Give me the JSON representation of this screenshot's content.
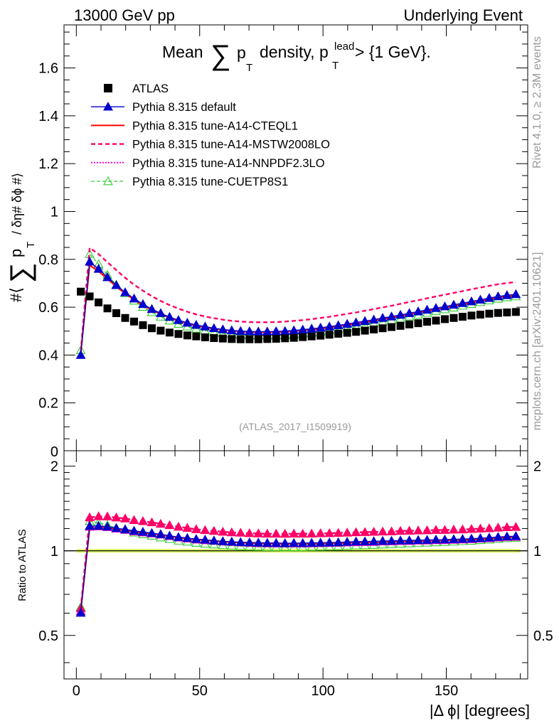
{
  "header": {
    "left": "13000 GeV pp",
    "right": "Underlying Event"
  },
  "side_labels": {
    "rivet": "Rivet 4.1.0, ≥ 2.3M events",
    "mcplots": "mcplots.cern.ch [arXiv:2401.10621]"
  },
  "colors": {
    "atlas": "#000000",
    "default": "#0000cc",
    "cteql1": "#ff0000",
    "mstw": "#ff0066",
    "nnpdf": "#ff00cc",
    "cuetp": "#33cc33",
    "band": "#ddff66"
  },
  "chart_data": {
    "type": "line",
    "title_parts": {
      "pre": "Mean",
      "sum": "∑",
      "p": "p",
      "T": "T",
      "mid": "density, p",
      "lead": "lead",
      "post": "> {1 GeV}."
    },
    "ylabel_parts": {
      "open": "#⟨",
      "sum": "∑",
      "p": "p",
      "T": "T",
      "rest": "/ δη# δϕ #⟩"
    },
    "watermark": "(ATLAS_2017_I1509919)",
    "xlabel": "|Δ ϕ| [degrees]",
    "ratio_ylabel": "Ratio to ATLAS",
    "xlim": [
      -5,
      183
    ],
    "ylim": [
      0,
      1.78
    ],
    "ratio_ylim": [
      0.35,
      2.27
    ],
    "xticks": [
      0,
      50,
      100,
      150
    ],
    "yticks": [
      0.2,
      0.4,
      0.6,
      0.8,
      1,
      1.2,
      1.4,
      1.6
    ],
    "ytick_zero_label": "0",
    "ratio_yticks": [
      0.5,
      1,
      2
    ],
    "legend": [
      {
        "key": "atlas",
        "label": "ATLAS",
        "style": "marker-square"
      },
      {
        "key": "default",
        "label": "Pythia 8.315 default",
        "style": "line-triangle"
      },
      {
        "key": "cteql1",
        "label": "Pythia 8.315 tune-A14-CTEQL1",
        "style": "line"
      },
      {
        "key": "mstw",
        "label": "Pythia 8.315 tune-A14-MSTW2008LO",
        "style": "dashed"
      },
      {
        "key": "nnpdf",
        "label": "Pythia 8.315 tune-A14-NNPDF2.3LO",
        "style": "dotted"
      },
      {
        "key": "cuetp",
        "label": "Pythia 8.315 tune-CUETP8S1",
        "style": "dashed-open-triangle"
      }
    ],
    "x": [
      1.8,
      5.4,
      9,
      12.6,
      16.2,
      19.8,
      23.4,
      27,
      30.6,
      34.2,
      37.8,
      41.4,
      45,
      48.6,
      52.2,
      55.8,
      59.4,
      63,
      66.6,
      70.2,
      73.8,
      77.4,
      81,
      84.6,
      88.2,
      91.8,
      95.4,
      99,
      102.6,
      106.2,
      109.8,
      113.4,
      117,
      120.6,
      124.2,
      127.8,
      131.4,
      135,
      138.6,
      142.2,
      145.8,
      149.4,
      153,
      156.6,
      160.2,
      163.8,
      167.4,
      171,
      174.6,
      178.2
    ],
    "series": [
      {
        "name": "ATLAS",
        "key": "atlas",
        "values": [
          0.665,
          0.645,
          0.62,
          0.595,
          0.575,
          0.555,
          0.54,
          0.525,
          0.512,
          0.502,
          0.494,
          0.488,
          0.482,
          0.478,
          0.474,
          0.471,
          0.469,
          0.467,
          0.466,
          0.466,
          0.466,
          0.467,
          0.468,
          0.47,
          0.472,
          0.475,
          0.478,
          0.481,
          0.485,
          0.489,
          0.493,
          0.497,
          0.502,
          0.507,
          0.512,
          0.517,
          0.522,
          0.528,
          0.533,
          0.539,
          0.544,
          0.55,
          0.555,
          0.56,
          0.565,
          0.569,
          0.573,
          0.576,
          0.578,
          0.58
        ]
      },
      {
        "name": "Pythia 8.315 default",
        "key": "default",
        "values": [
          0.4,
          0.79,
          0.76,
          0.725,
          0.692,
          0.662,
          0.636,
          0.613,
          0.592,
          0.575,
          0.559,
          0.546,
          0.535,
          0.526,
          0.519,
          0.512,
          0.507,
          0.503,
          0.5,
          0.499,
          0.498,
          0.498,
          0.499,
          0.5,
          0.503,
          0.506,
          0.51,
          0.514,
          0.519,
          0.524,
          0.53,
          0.536,
          0.542,
          0.548,
          0.555,
          0.561,
          0.568,
          0.575,
          0.582,
          0.589,
          0.596,
          0.603,
          0.61,
          0.617,
          0.624,
          0.631,
          0.638,
          0.645,
          0.65,
          0.654
        ]
      },
      {
        "name": "Pythia 8.315 tune-A14-CTEQL1",
        "key": "cteql1",
        "values": [
          0.41,
          0.775,
          0.75,
          0.718,
          0.686,
          0.657,
          0.631,
          0.608,
          0.588,
          0.571,
          0.556,
          0.543,
          0.532,
          0.523,
          0.516,
          0.51,
          0.505,
          0.501,
          0.498,
          0.496,
          0.495,
          0.495,
          0.496,
          0.497,
          0.5,
          0.503,
          0.506,
          0.51,
          0.515,
          0.52,
          0.526,
          0.531,
          0.537,
          0.543,
          0.55,
          0.556,
          0.563,
          0.57,
          0.577,
          0.584,
          0.591,
          0.598,
          0.605,
          0.612,
          0.619,
          0.626,
          0.633,
          0.64,
          0.645,
          0.648
        ]
      },
      {
        "name": "Pythia 8.315 tune-A14-MSTW2008LO",
        "key": "mstw",
        "values": [
          0.415,
          0.848,
          0.822,
          0.788,
          0.755,
          0.723,
          0.694,
          0.669,
          0.646,
          0.626,
          0.609,
          0.594,
          0.581,
          0.57,
          0.561,
          0.554,
          0.548,
          0.543,
          0.54,
          0.538,
          0.537,
          0.537,
          0.538,
          0.54,
          0.543,
          0.546,
          0.55,
          0.555,
          0.56,
          0.566,
          0.572,
          0.578,
          0.585,
          0.592,
          0.599,
          0.606,
          0.614,
          0.622,
          0.629,
          0.637,
          0.645,
          0.652,
          0.66,
          0.667,
          0.675,
          0.682,
          0.689,
          0.696,
          0.701,
          0.705
        ]
      },
      {
        "name": "Pythia 8.315 tune-A14-NNPDF2.3LO",
        "key": "nnpdf",
        "values": [
          0.405,
          0.785,
          0.757,
          0.722,
          0.689,
          0.659,
          0.633,
          0.61,
          0.59,
          0.573,
          0.557,
          0.544,
          0.533,
          0.524,
          0.517,
          0.511,
          0.506,
          0.502,
          0.499,
          0.497,
          0.496,
          0.496,
          0.497,
          0.499,
          0.501,
          0.504,
          0.508,
          0.512,
          0.517,
          0.522,
          0.528,
          0.533,
          0.539,
          0.545,
          0.552,
          0.558,
          0.565,
          0.572,
          0.579,
          0.586,
          0.593,
          0.6,
          0.607,
          0.614,
          0.621,
          0.628,
          0.635,
          0.642,
          0.647,
          0.65
        ]
      },
      {
        "name": "Pythia 8.315 tune-CUETP8S1",
        "key": "cuetp",
        "values": [
          0.42,
          0.822,
          0.78,
          0.735,
          0.694,
          0.658,
          0.627,
          0.601,
          0.579,
          0.56,
          0.544,
          0.53,
          0.519,
          0.51,
          0.502,
          0.496,
          0.491,
          0.487,
          0.484,
          0.482,
          0.481,
          0.481,
          0.482,
          0.483,
          0.486,
          0.489,
          0.493,
          0.497,
          0.502,
          0.507,
          0.513,
          0.519,
          0.525,
          0.532,
          0.539,
          0.546,
          0.553,
          0.561,
          0.568,
          0.576,
          0.583,
          0.591,
          0.598,
          0.606,
          0.613,
          0.621,
          0.628,
          0.635,
          0.641,
          0.645
        ]
      }
    ]
  }
}
